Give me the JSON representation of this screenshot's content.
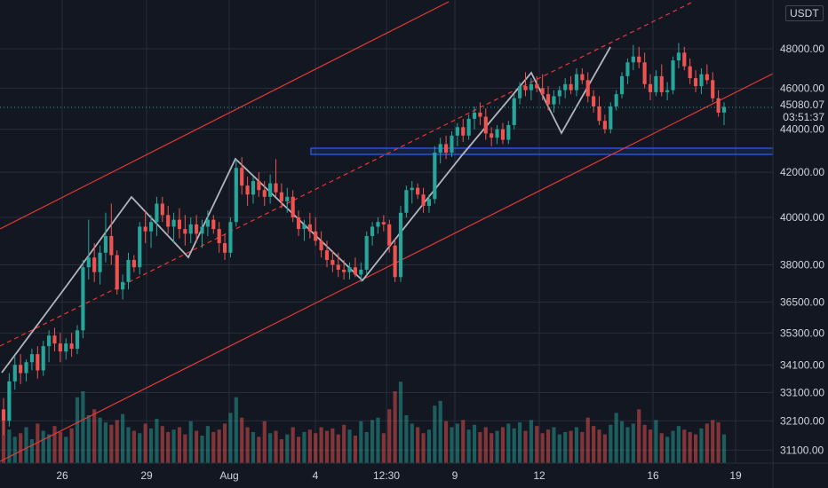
{
  "currency_badge": "USDT",
  "current_price": "45080.07",
  "countdown": "03:51:37",
  "chart_data": {
    "type": "candlestick",
    "symbol_quote": "USDT",
    "y_axis": {
      "scale": "log",
      "tick_labels": [
        "48000.00",
        "46000.00",
        "44000.00",
        "42000.00",
        "40000.00",
        "38000.00",
        "36500.00",
        "35300.00",
        "34100.00",
        "33100.00",
        "32100.00",
        "31100.00"
      ],
      "range": [
        30500,
        50000
      ]
    },
    "x_axis": {
      "tick_labels": [
        "26",
        "29",
        "Aug",
        "4",
        "12:30",
        "9",
        "12",
        "16",
        "19"
      ]
    },
    "grid": true,
    "colors": {
      "up": "#26a69a",
      "down": "#ef5350",
      "channel": "#e53935",
      "zigzag": "#b2b5be",
      "support_zone": "#2962ff",
      "background": "#131722",
      "grid": "#2a2e39"
    },
    "candles": [
      [
        32500,
        32900,
        31600,
        32100
      ],
      [
        32100,
        33800,
        31900,
        33500
      ],
      [
        33500,
        34400,
        33200,
        34100
      ],
      [
        34100,
        34500,
        33400,
        33800
      ],
      [
        33800,
        34300,
        33500,
        34200
      ],
      [
        34200,
        34700,
        33900,
        34500
      ],
      [
        34500,
        34800,
        33600,
        33900
      ],
      [
        33900,
        35000,
        33700,
        34800
      ],
      [
        34800,
        35400,
        34200,
        35200
      ],
      [
        35200,
        35500,
        34600,
        34900
      ],
      [
        34900,
        35300,
        34200,
        34600
      ],
      [
        34600,
        35100,
        34300,
        34900
      ],
      [
        34900,
        35300,
        34400,
        34700
      ],
      [
        34700,
        35600,
        34500,
        35400
      ],
      [
        35400,
        38200,
        35100,
        37900
      ],
      [
        37900,
        39900,
        37400,
        38300
      ],
      [
        38300,
        38900,
        37300,
        37700
      ],
      [
        37700,
        38800,
        37200,
        38500
      ],
      [
        38500,
        40200,
        38100,
        39200
      ],
      [
        39200,
        40600,
        38000,
        38400
      ],
      [
        38400,
        38600,
        36800,
        37000
      ],
      [
        37000,
        37600,
        36600,
        37300
      ],
      [
        37300,
        38500,
        37000,
        38200
      ],
      [
        38200,
        38400,
        37700,
        37900
      ],
      [
        37900,
        39800,
        37600,
        39600
      ],
      [
        39600,
        40300,
        38900,
        39400
      ],
      [
        39400,
        40100,
        38700,
        39800
      ],
      [
        39800,
        40900,
        39200,
        40600
      ],
      [
        40600,
        40900,
        39800,
        40100
      ],
      [
        40100,
        40500,
        39300,
        39600
      ],
      [
        39600,
        40200,
        38900,
        39900
      ],
      [
        39900,
        40400,
        39100,
        39500
      ],
      [
        39500,
        40100,
        38800,
        39300
      ],
      [
        39300,
        40000,
        38900,
        39700
      ],
      [
        39700,
        40100,
        39000,
        39300
      ],
      [
        39300,
        39900,
        38700,
        39600
      ],
      [
        39600,
        40300,
        39200,
        39900
      ],
      [
        39900,
        40100,
        39300,
        39500
      ],
      [
        39500,
        39800,
        38500,
        38900
      ],
      [
        38900,
        39300,
        38200,
        38500
      ],
      [
        38500,
        40000,
        38300,
        39800
      ],
      [
        39800,
        42600,
        39600,
        42200
      ],
      [
        42200,
        42700,
        41000,
        41400
      ],
      [
        41400,
        41800,
        40500,
        41000
      ],
      [
        41000,
        41800,
        40600,
        41600
      ],
      [
        41600,
        42000,
        40900,
        41200
      ],
      [
        41200,
        41600,
        40500,
        40900
      ],
      [
        40900,
        41900,
        40600,
        41500
      ],
      [
        41500,
        42600,
        40900,
        41100
      ],
      [
        41100,
        41500,
        40400,
        40700
      ],
      [
        40700,
        41300,
        40200,
        40900
      ],
      [
        40900,
        41200,
        39800,
        40000
      ],
      [
        40000,
        40300,
        39200,
        39500
      ],
      [
        39500,
        39900,
        39000,
        39700
      ],
      [
        39700,
        40200,
        39100,
        39400
      ],
      [
        39400,
        40000,
        38800,
        39000
      ],
      [
        39000,
        39400,
        38300,
        38600
      ],
      [
        38600,
        39000,
        37900,
        38200
      ],
      [
        38200,
        38600,
        37700,
        38000
      ],
      [
        38000,
        38500,
        37500,
        37800
      ],
      [
        37800,
        38200,
        37400,
        37700
      ],
      [
        37700,
        38100,
        37400,
        37900
      ],
      [
        37900,
        38300,
        37500,
        37600
      ],
      [
        37600,
        38100,
        37300,
        37800
      ],
      [
        37800,
        39400,
        37600,
        39200
      ],
      [
        39200,
        39800,
        38800,
        39600
      ],
      [
        39600,
        40000,
        39300,
        39800
      ],
      [
        39800,
        40100,
        39400,
        39700
      ],
      [
        39700,
        39900,
        38500,
        38800
      ],
      [
        38800,
        39100,
        37300,
        37500
      ],
      [
        37500,
        40500,
        37300,
        40200
      ],
      [
        40200,
        41400,
        40000,
        41200
      ],
      [
        41200,
        41600,
        40600,
        41300
      ],
      [
        41300,
        41500,
        40800,
        41000
      ],
      [
        41000,
        41300,
        40200,
        40500
      ],
      [
        40500,
        41000,
        40200,
        40800
      ],
      [
        40800,
        43200,
        40600,
        42900
      ],
      [
        42900,
        43600,
        42400,
        43300
      ],
      [
        43300,
        43700,
        42600,
        42900
      ],
      [
        42900,
        43900,
        42700,
        43700
      ],
      [
        43700,
        44300,
        43200,
        44100
      ],
      [
        44100,
        44500,
        43400,
        43700
      ],
      [
        43700,
        44700,
        43500,
        44500
      ],
      [
        44500,
        45100,
        44000,
        44800
      ],
      [
        44800,
        45300,
        44200,
        44600
      ],
      [
        44600,
        45000,
        43500,
        43800
      ],
      [
        43800,
        44100,
        43200,
        43600
      ],
      [
        43600,
        44200,
        43300,
        44000
      ],
      [
        44000,
        44300,
        43300,
        43500
      ],
      [
        43500,
        44400,
        43300,
        44200
      ],
      [
        44200,
        45700,
        44000,
        45500
      ],
      [
        45500,
        46300,
        45200,
        46100
      ],
      [
        46100,
        46800,
        45600,
        45900
      ],
      [
        45900,
        46500,
        45400,
        46200
      ],
      [
        46200,
        46600,
        45800,
        46000
      ],
      [
        46000,
        46700,
        45400,
        45700
      ],
      [
        45700,
        46100,
        44900,
        45200
      ],
      [
        45200,
        45900,
        44800,
        45600
      ],
      [
        45600,
        46100,
        45200,
        45900
      ],
      [
        45900,
        46500,
        45500,
        46200
      ],
      [
        46200,
        46600,
        45700,
        45900
      ],
      [
        45900,
        47000,
        45600,
        46700
      ],
      [
        46700,
        47000,
        46200,
        46400
      ],
      [
        46400,
        46800,
        45300,
        45600
      ],
      [
        45600,
        45900,
        44800,
        45100
      ],
      [
        45100,
        45600,
        44200,
        44400
      ],
      [
        44400,
        44700,
        43800,
        44000
      ],
      [
        44000,
        45300,
        43800,
        45100
      ],
      [
        45100,
        45900,
        44900,
        45700
      ],
      [
        45700,
        46800,
        45500,
        46600
      ],
      [
        46600,
        47500,
        46200,
        47300
      ],
      [
        47300,
        48200,
        46900,
        47600
      ],
      [
        47600,
        48100,
        47000,
        47300
      ],
      [
        47300,
        47800,
        46000,
        46200
      ],
      [
        46200,
        46700,
        45400,
        45800
      ],
      [
        45800,
        46900,
        45600,
        46600
      ],
      [
        46600,
        47200,
        45600,
        45800
      ],
      [
        45800,
        46300,
        45400,
        45900
      ],
      [
        45900,
        47600,
        45700,
        47400
      ],
      [
        47400,
        48300,
        47000,
        47800
      ],
      [
        47800,
        48100,
        46900,
        47100
      ],
      [
        47100,
        47500,
        46200,
        46500
      ],
      [
        46500,
        46900,
        45800,
        46100
      ],
      [
        46100,
        47000,
        45700,
        46700
      ],
      [
        46700,
        47200,
        46200,
        46400
      ],
      [
        46400,
        46800,
        45300,
        45500
      ],
      [
        45500,
        45900,
        44600,
        44800
      ],
      [
        44800,
        45300,
        44200,
        45080
      ]
    ],
    "volumes": [
      0.35,
      0.28,
      0.22,
      0.25,
      0.3,
      0.2,
      0.33,
      0.27,
      0.24,
      0.31,
      0.26,
      0.22,
      0.29,
      0.55,
      0.6,
      0.4,
      0.45,
      0.38,
      0.34,
      0.32,
      0.36,
      0.41,
      0.3,
      0.27,
      0.25,
      0.33,
      0.29,
      0.37,
      0.31,
      0.26,
      0.28,
      0.3,
      0.24,
      0.35,
      0.27,
      0.23,
      0.31,
      0.26,
      0.28,
      0.33,
      0.42,
      0.55,
      0.38,
      0.3,
      0.26,
      0.22,
      0.35,
      0.25,
      0.27,
      0.2,
      0.24,
      0.3,
      0.22,
      0.26,
      0.28,
      0.25,
      0.3,
      0.27,
      0.29,
      0.24,
      0.32,
      0.28,
      0.23,
      0.35,
      0.26,
      0.36,
      0.38,
      0.25,
      0.45,
      0.6,
      0.68,
      0.4,
      0.33,
      0.3,
      0.25,
      0.28,
      0.48,
      0.52,
      0.35,
      0.3,
      0.33,
      0.36,
      0.28,
      0.32,
      0.26,
      0.3,
      0.25,
      0.27,
      0.3,
      0.33,
      0.29,
      0.34,
      0.27,
      0.36,
      0.31,
      0.25,
      0.28,
      0.3,
      0.24,
      0.26,
      0.27,
      0.3,
      0.26,
      0.38,
      0.31,
      0.28,
      0.24,
      0.32,
      0.42,
      0.35,
      0.3,
      0.33,
      0.45,
      0.32,
      0.28,
      0.36,
      0.25,
      0.22,
      0.27,
      0.31,
      0.28,
      0.26,
      0.24,
      0.29,
      0.33,
      0.36,
      0.34,
      0.24
    ]
  }
}
